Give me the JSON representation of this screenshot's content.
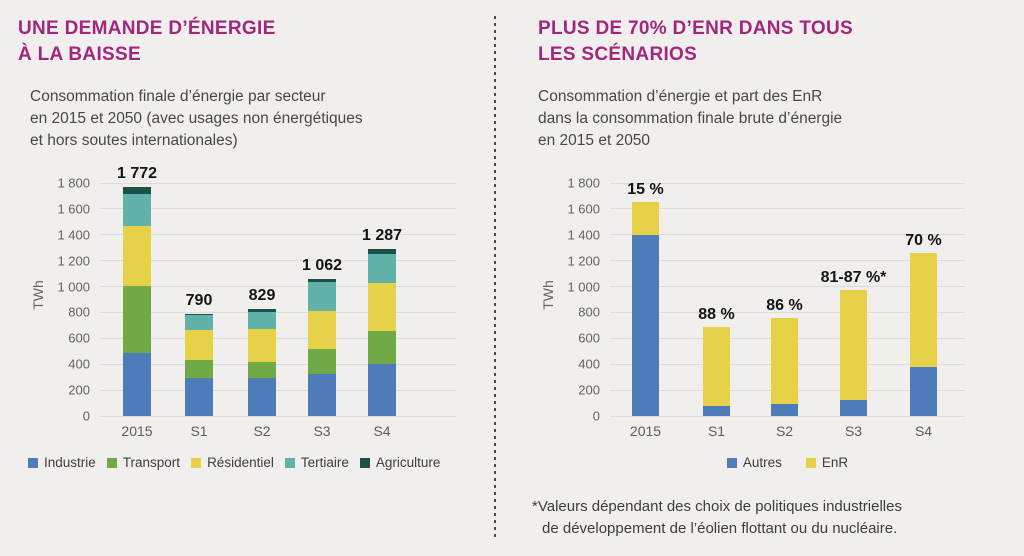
{
  "page": {
    "background": "#f0efed",
    "divider_color": "#4b4b4b"
  },
  "theme": {
    "title_color": "#a2267e",
    "text_color": "#474745",
    "axis_label_color": "#636361",
    "grid_color": "#dcdcda",
    "value_label_color": "#141414"
  },
  "left": {
    "title_lines": [
      "UNE DEMANDE D’ÉNERGIE",
      "À LA BAISSE"
    ],
    "subtitle_lines": [
      "Consommation finale d’énergie par secteur",
      "en 2015 et 2050 (avec usages non énergétiques",
      "et hors soutes internationales)"
    ]
  },
  "right": {
    "title_lines": [
      "PLUS DE 70% D’ENR DANS TOUS",
      "LES SCÉNARIOS"
    ],
    "subtitle_lines": [
      "Consommation d’énergie et part des EnR",
      "dans la consommation finale brute d’énergie",
      "en 2015 et 2050"
    ],
    "footnote_lines": [
      "*Valeurs dépendant des choix de politiques industrielles",
      "de développement de l’éolien flottant ou du nucléaire."
    ]
  },
  "chart_data": [
    {
      "type": "bar",
      "stacked": true,
      "title": "Consommation finale d’énergie par secteur en 2015 et 2050 (avec usages non énergétiques et hors soutes internationales)",
      "ylabel": "TWh",
      "ylim": [
        0,
        1800
      ],
      "ytick_step": 200,
      "ytick_labels": [
        "0",
        "200",
        "400",
        "600",
        "800",
        "1 000",
        "1 200",
        "1 400",
        "1 600",
        "1 800"
      ],
      "grid": true,
      "legend_position": "bottom",
      "categories": [
        "2015",
        "S1",
        "S2",
        "S3",
        "S4"
      ],
      "series": [
        {
          "name": "Industrie",
          "color": "#4d7cb8",
          "values": [
            490,
            290,
            290,
            325,
            400
          ]
        },
        {
          "name": "Transport",
          "color": "#6faa46",
          "values": [
            515,
            145,
            128,
            195,
            260
          ]
        },
        {
          "name": "Résidentiel",
          "color": "#e7d149",
          "values": [
            460,
            230,
            252,
            295,
            370
          ]
        },
        {
          "name": "Tertiaire",
          "color": "#61b2a8",
          "values": [
            250,
            120,
            135,
            217,
            225
          ]
        },
        {
          "name": "Agriculture",
          "color": "#1c5048",
          "values": [
            57,
            5,
            24,
            30,
            32
          ]
        }
      ],
      "bar_total_labels": [
        "1 772",
        "790",
        "829",
        "1 062",
        "1 287"
      ]
    },
    {
      "type": "bar",
      "stacked": true,
      "title": "Consommation d’énergie et part des EnR dans la consommation finale brute d’énergie en 2015 et 2050",
      "ylabel": "TWh",
      "ylim": [
        0,
        1800
      ],
      "ytick_step": 200,
      "ytick_labels": [
        "0",
        "200",
        "400",
        "600",
        "800",
        "1 000",
        "1 200",
        "1 400",
        "1 600",
        "1 800"
      ],
      "grid": true,
      "legend_position": "bottom",
      "categories": [
        "2015",
        "S1",
        "S2",
        "S3",
        "S4"
      ],
      "series": [
        {
          "name": "Autres",
          "color": "#4d7cb8",
          "values": [
            1400,
            75,
            95,
            120,
            380
          ]
        },
        {
          "name": "EnR",
          "color": "#e7d149",
          "values": [
            250,
            615,
            665,
            850,
            880
          ]
        }
      ],
      "bar_total_labels": [
        "15 %",
        "88 %",
        "86 %",
        "81-87 %*",
        "70 %"
      ]
    }
  ]
}
